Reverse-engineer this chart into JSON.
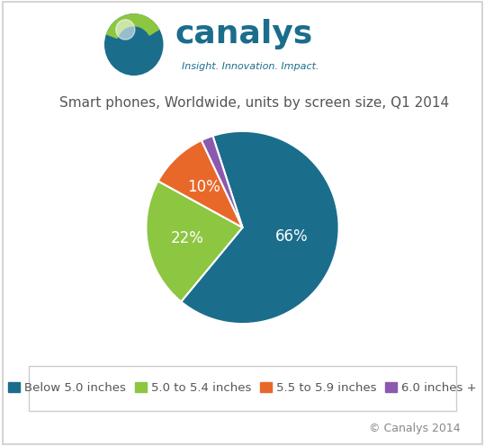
{
  "title": "Smart phones, Worldwide, units by screen size, Q1 2014",
  "slices": [
    66,
    22,
    10,
    2
  ],
  "labels": [
    "66%",
    "22%",
    "10%",
    ""
  ],
  "colors": [
    "#1b6d8c",
    "#8dc641",
    "#e8682a",
    "#8b5aae"
  ],
  "legend_labels": [
    "Below 5.0 inches",
    "5.0 to 5.4 inches",
    "5.5 to 5.9 inches",
    "6.0 inches +"
  ],
  "copyright": "© Canalys 2014",
  "background_color": "#ffffff",
  "title_fontsize": 11,
  "label_fontsize": 12,
  "legend_fontsize": 9.5,
  "startangle": 108,
  "border_color": "#cccccc"
}
